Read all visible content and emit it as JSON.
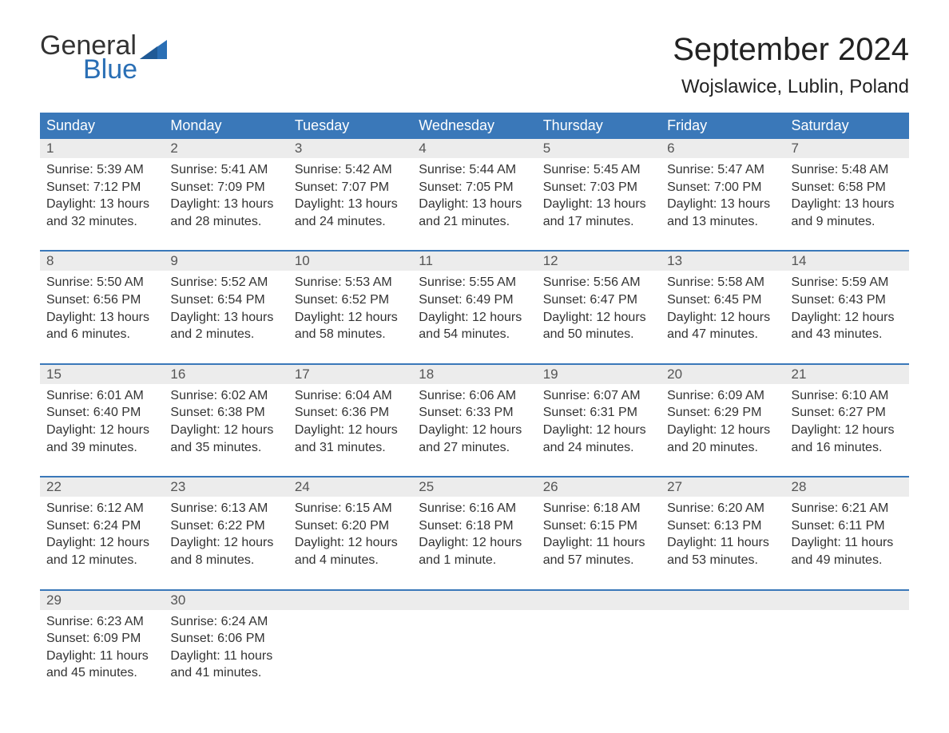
{
  "logo": {
    "text_general": "General",
    "text_blue": "Blue",
    "flag_color": "#2a6fb5"
  },
  "title": "September 2024",
  "location": "Wojslawice, Lublin, Poland",
  "header_bg": "#3a78b9",
  "header_fg": "#ffffff",
  "daynum_bg": "#ececec",
  "daynum_fg": "#555555",
  "body_text_color": "#333333",
  "week_border_color": "#3a78b9",
  "day_headers": [
    "Sunday",
    "Monday",
    "Tuesday",
    "Wednesday",
    "Thursday",
    "Friday",
    "Saturday"
  ],
  "weeks": [
    [
      {
        "n": "1",
        "sr": "5:39 AM",
        "ss": "7:12 PM",
        "d1": "13 hours",
        "d2": "and 32 minutes."
      },
      {
        "n": "2",
        "sr": "5:41 AM",
        "ss": "7:09 PM",
        "d1": "13 hours",
        "d2": "and 28 minutes."
      },
      {
        "n": "3",
        "sr": "5:42 AM",
        "ss": "7:07 PM",
        "d1": "13 hours",
        "d2": "and 24 minutes."
      },
      {
        "n": "4",
        "sr": "5:44 AM",
        "ss": "7:05 PM",
        "d1": "13 hours",
        "d2": "and 21 minutes."
      },
      {
        "n": "5",
        "sr": "5:45 AM",
        "ss": "7:03 PM",
        "d1": "13 hours",
        "d2": "and 17 minutes."
      },
      {
        "n": "6",
        "sr": "5:47 AM",
        "ss": "7:00 PM",
        "d1": "13 hours",
        "d2": "and 13 minutes."
      },
      {
        "n": "7",
        "sr": "5:48 AM",
        "ss": "6:58 PM",
        "d1": "13 hours",
        "d2": "and 9 minutes."
      }
    ],
    [
      {
        "n": "8",
        "sr": "5:50 AM",
        "ss": "6:56 PM",
        "d1": "13 hours",
        "d2": "and 6 minutes."
      },
      {
        "n": "9",
        "sr": "5:52 AM",
        "ss": "6:54 PM",
        "d1": "13 hours",
        "d2": "and 2 minutes."
      },
      {
        "n": "10",
        "sr": "5:53 AM",
        "ss": "6:52 PM",
        "d1": "12 hours",
        "d2": "and 58 minutes."
      },
      {
        "n": "11",
        "sr": "5:55 AM",
        "ss": "6:49 PM",
        "d1": "12 hours",
        "d2": "and 54 minutes."
      },
      {
        "n": "12",
        "sr": "5:56 AM",
        "ss": "6:47 PM",
        "d1": "12 hours",
        "d2": "and 50 minutes."
      },
      {
        "n": "13",
        "sr": "5:58 AM",
        "ss": "6:45 PM",
        "d1": "12 hours",
        "d2": "and 47 minutes."
      },
      {
        "n": "14",
        "sr": "5:59 AM",
        "ss": "6:43 PM",
        "d1": "12 hours",
        "d2": "and 43 minutes."
      }
    ],
    [
      {
        "n": "15",
        "sr": "6:01 AM",
        "ss": "6:40 PM",
        "d1": "12 hours",
        "d2": "and 39 minutes."
      },
      {
        "n": "16",
        "sr": "6:02 AM",
        "ss": "6:38 PM",
        "d1": "12 hours",
        "d2": "and 35 minutes."
      },
      {
        "n": "17",
        "sr": "6:04 AM",
        "ss": "6:36 PM",
        "d1": "12 hours",
        "d2": "and 31 minutes."
      },
      {
        "n": "18",
        "sr": "6:06 AM",
        "ss": "6:33 PM",
        "d1": "12 hours",
        "d2": "and 27 minutes."
      },
      {
        "n": "19",
        "sr": "6:07 AM",
        "ss": "6:31 PM",
        "d1": "12 hours",
        "d2": "and 24 minutes."
      },
      {
        "n": "20",
        "sr": "6:09 AM",
        "ss": "6:29 PM",
        "d1": "12 hours",
        "d2": "and 20 minutes."
      },
      {
        "n": "21",
        "sr": "6:10 AM",
        "ss": "6:27 PM",
        "d1": "12 hours",
        "d2": "and 16 minutes."
      }
    ],
    [
      {
        "n": "22",
        "sr": "6:12 AM",
        "ss": "6:24 PM",
        "d1": "12 hours",
        "d2": "and 12 minutes."
      },
      {
        "n": "23",
        "sr": "6:13 AM",
        "ss": "6:22 PM",
        "d1": "12 hours",
        "d2": "and 8 minutes."
      },
      {
        "n": "24",
        "sr": "6:15 AM",
        "ss": "6:20 PM",
        "d1": "12 hours",
        "d2": "and 4 minutes."
      },
      {
        "n": "25",
        "sr": "6:16 AM",
        "ss": "6:18 PM",
        "d1": "12 hours",
        "d2": "and 1 minute."
      },
      {
        "n": "26",
        "sr": "6:18 AM",
        "ss": "6:15 PM",
        "d1": "11 hours",
        "d2": "and 57 minutes."
      },
      {
        "n": "27",
        "sr": "6:20 AM",
        "ss": "6:13 PM",
        "d1": "11 hours",
        "d2": "and 53 minutes."
      },
      {
        "n": "28",
        "sr": "6:21 AM",
        "ss": "6:11 PM",
        "d1": "11 hours",
        "d2": "and 49 minutes."
      }
    ],
    [
      {
        "n": "29",
        "sr": "6:23 AM",
        "ss": "6:09 PM",
        "d1": "11 hours",
        "d2": "and 45 minutes."
      },
      {
        "n": "30",
        "sr": "6:24 AM",
        "ss": "6:06 PM",
        "d1": "11 hours",
        "d2": "and 41 minutes."
      },
      null,
      null,
      null,
      null,
      null
    ]
  ],
  "labels": {
    "sunrise": "Sunrise: ",
    "sunset": "Sunset: ",
    "daylight": "Daylight: "
  }
}
